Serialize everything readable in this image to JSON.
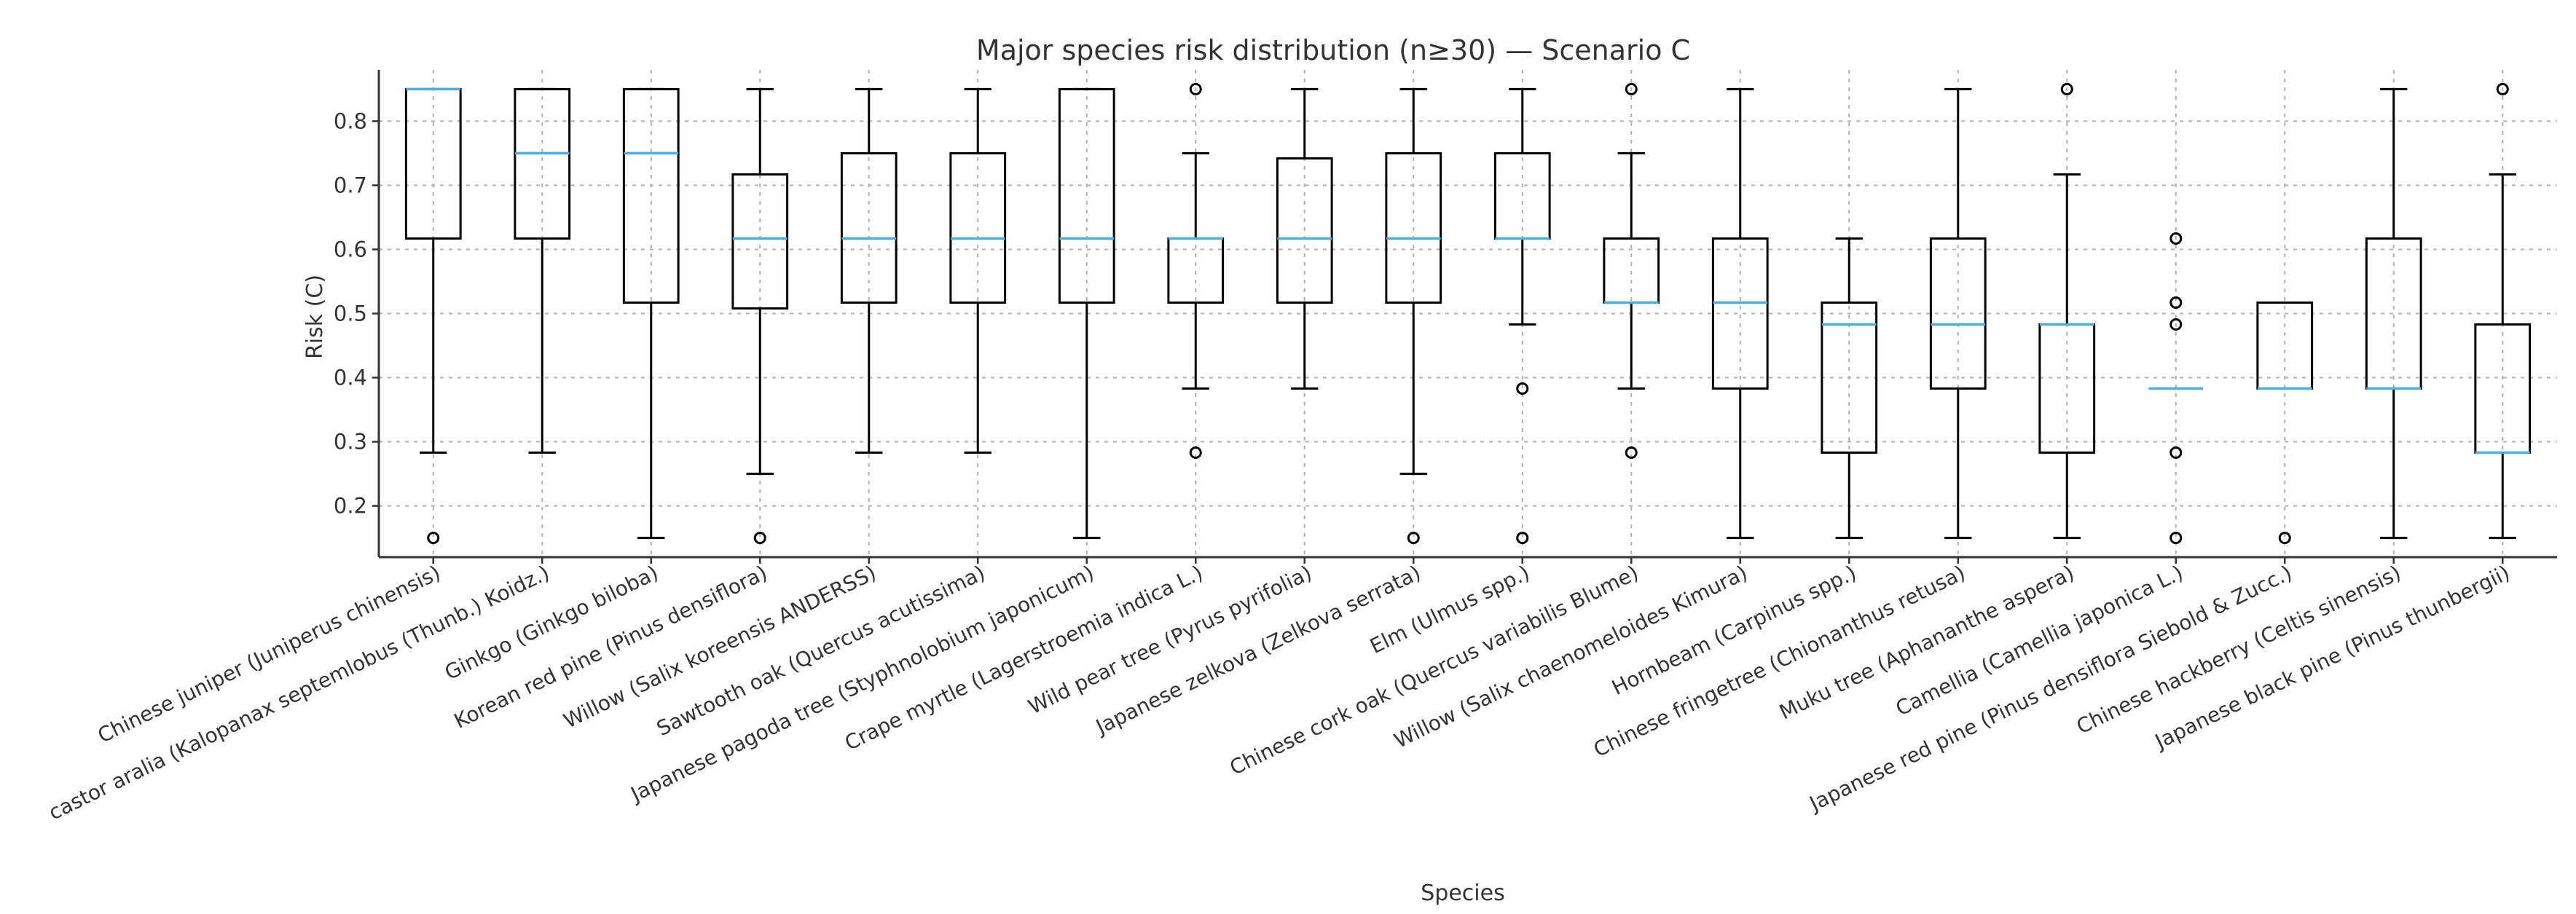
{
  "chart_data": {
    "type": "boxplot",
    "title": "Major species risk distribution (n≥30) — Scenario C",
    "xlabel": "Species",
    "ylabel": "Risk (C)",
    "ylim": [
      0.12,
      0.88
    ],
    "yticks": [
      0.2,
      0.3,
      0.4,
      0.5,
      0.6,
      0.7,
      0.8
    ],
    "ytick_labels": [
      "0.2",
      "0.3",
      "0.4",
      "0.5",
      "0.6",
      "0.7",
      "0.8"
    ],
    "grid": true,
    "series": [
      {
        "name": "Chinese juniper (Juniperus chinensis)",
        "whislo": 0.283,
        "q1": 0.617,
        "med": 0.85,
        "q3": 0.85,
        "whishi": 0.85,
        "fliers": [
          0.15
        ]
      },
      {
        "name": "castor aralia (Kalopanax septemlobus (Thunb.) Koidz.)",
        "whislo": 0.283,
        "q1": 0.617,
        "med": 0.75,
        "q3": 0.85,
        "whishi": 0.85,
        "fliers": []
      },
      {
        "name": "Ginkgo (Ginkgo biloba)",
        "whislo": 0.15,
        "q1": 0.517,
        "med": 0.75,
        "q3": 0.85,
        "whishi": 0.85,
        "fliers": []
      },
      {
        "name": "Korean red pine (Pinus densiflora)",
        "whislo": 0.25,
        "q1": 0.508,
        "med": 0.617,
        "q3": 0.717,
        "whishi": 0.85,
        "fliers": [
          0.15
        ]
      },
      {
        "name": "Willow (Salix koreensis ANDERSS)",
        "whislo": 0.283,
        "q1": 0.517,
        "med": 0.617,
        "q3": 0.75,
        "whishi": 0.85,
        "fliers": []
      },
      {
        "name": "Sawtooth oak (Quercus acutissima)",
        "whislo": 0.283,
        "q1": 0.517,
        "med": 0.617,
        "q3": 0.75,
        "whishi": 0.85,
        "fliers": []
      },
      {
        "name": "Japanese pagoda tree (Styphnolobium japonicum)",
        "whislo": 0.15,
        "q1": 0.517,
        "med": 0.617,
        "q3": 0.85,
        "whishi": 0.85,
        "fliers": []
      },
      {
        "name": "Crape myrtle (Lagerstroemia indica L.)",
        "whislo": 0.383,
        "q1": 0.517,
        "med": 0.617,
        "q3": 0.617,
        "whishi": 0.75,
        "fliers": [
          0.283,
          0.85
        ]
      },
      {
        "name": "Wild pear tree (Pyrus pyrifolia)",
        "whislo": 0.383,
        "q1": 0.517,
        "med": 0.617,
        "q3": 0.742,
        "whishi": 0.85,
        "fliers": []
      },
      {
        "name": "Japanese zelkova (Zelkova serrata)",
        "whislo": 0.25,
        "q1": 0.517,
        "med": 0.617,
        "q3": 0.75,
        "whishi": 0.85,
        "fliers": [
          0.15
        ]
      },
      {
        "name": "Elm (Ulmus spp.)",
        "whislo": 0.483,
        "q1": 0.617,
        "med": 0.617,
        "q3": 0.75,
        "whishi": 0.85,
        "fliers": [
          0.15,
          0.383
        ]
      },
      {
        "name": "Chinese cork oak (Quercus variabilis Blume)",
        "whislo": 0.383,
        "q1": 0.517,
        "med": 0.517,
        "q3": 0.617,
        "whishi": 0.75,
        "fliers": [
          0.283,
          0.85
        ]
      },
      {
        "name": "Willow (Salix chaenomeloides Kimura)",
        "whislo": 0.15,
        "q1": 0.383,
        "med": 0.517,
        "q3": 0.617,
        "whishi": 0.85,
        "fliers": []
      },
      {
        "name": "Hornbeam (Carpinus spp.)",
        "whislo": 0.15,
        "q1": 0.283,
        "med": 0.483,
        "q3": 0.517,
        "whishi": 0.617,
        "fliers": []
      },
      {
        "name": "Chinese fringetree (Chionanthus retusa)",
        "whislo": 0.15,
        "q1": 0.383,
        "med": 0.483,
        "q3": 0.617,
        "whishi": 0.85,
        "fliers": []
      },
      {
        "name": "Muku tree (Aphananthe aspera)",
        "whislo": 0.15,
        "q1": 0.283,
        "med": 0.483,
        "q3": 0.483,
        "whishi": 0.717,
        "fliers": [
          0.85
        ]
      },
      {
        "name": "Camellia (Camellia japonica L.)",
        "whislo": 0.383,
        "q1": 0.383,
        "med": 0.383,
        "q3": 0.383,
        "whishi": 0.383,
        "fliers": [
          0.15,
          0.283,
          0.483,
          0.517,
          0.617
        ]
      },
      {
        "name": "Japanese red pine (Pinus densiflora Siebold & Zucc.)",
        "whislo": 0.383,
        "q1": 0.383,
        "med": 0.383,
        "q3": 0.517,
        "whishi": 0.517,
        "fliers": [
          0.15
        ]
      },
      {
        "name": "Chinese hackberry (Celtis sinensis)",
        "whislo": 0.15,
        "q1": 0.383,
        "med": 0.383,
        "q3": 0.617,
        "whishi": 0.85,
        "fliers": []
      },
      {
        "name": "Japanese black pine (Pinus thunbergii)",
        "whislo": 0.15,
        "q1": 0.283,
        "med": 0.283,
        "q3": 0.483,
        "whishi": 0.717,
        "fliers": [
          0.85
        ]
      }
    ],
    "colors": {
      "box": "#000000",
      "median": "#4aaee0",
      "grid": "#b0b0b0",
      "text": "#333333"
    }
  }
}
